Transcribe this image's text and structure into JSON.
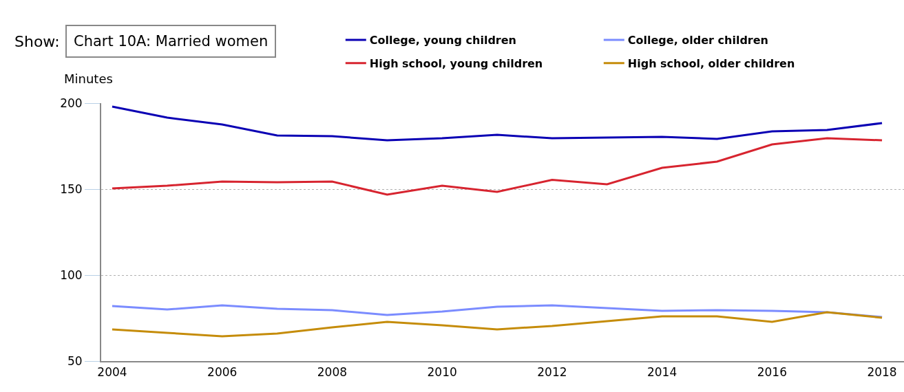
{
  "chart_data": {
    "type": "line",
    "title": "Chart 10A: Married women",
    "ylabel": "Minutes",
    "annotations": [
      "Show:"
    ],
    "x": [
      2004,
      2005,
      2006,
      2007,
      2008,
      2009,
      2010,
      2011,
      2012,
      2013,
      2014,
      2015,
      2016,
      2017,
      2018
    ],
    "series": [
      {
        "name": "College, young children",
        "color": "#0a00b4",
        "values": [
          198,
          191.6,
          187.6,
          181.2,
          180.8,
          178.4,
          179.6,
          181.6,
          179.6,
          180,
          180.4,
          179.2,
          183.6,
          184.4,
          188.4
        ]
      },
      {
        "name": "College, older children",
        "color": "#7b8cff",
        "values": [
          82,
          80,
          82.4,
          80.4,
          79.6,
          76.8,
          78.8,
          81.6,
          82.4,
          80.8,
          79.2,
          79.6,
          79.2,
          78.4,
          75.6
        ]
      },
      {
        "name": "High school, young children",
        "color": "#d7242f",
        "values": [
          150.4,
          152,
          154.4,
          154,
          154.4,
          146.8,
          152,
          148.4,
          155.4,
          152.8,
          162.4,
          166,
          176,
          179.6,
          178.4
        ]
      },
      {
        "name": "High school, older children",
        "color": "#c58c0a",
        "values": [
          68.4,
          66.4,
          64.4,
          66,
          69.6,
          72.8,
          70.8,
          68.4,
          70.4,
          73.2,
          76,
          76,
          72.8,
          78.4,
          75.2
        ]
      }
    ],
    "xlim": [
      2003.8,
      2018.4
    ],
    "xticks": [
      2004,
      2006,
      2008,
      2010,
      2012,
      2014,
      2016,
      2018
    ],
    "ylim": [
      50,
      200
    ],
    "yticks": [
      50,
      100,
      150,
      200
    ],
    "grid": "y",
    "legend": "top",
    "line_style": "solid",
    "marker": "none"
  }
}
